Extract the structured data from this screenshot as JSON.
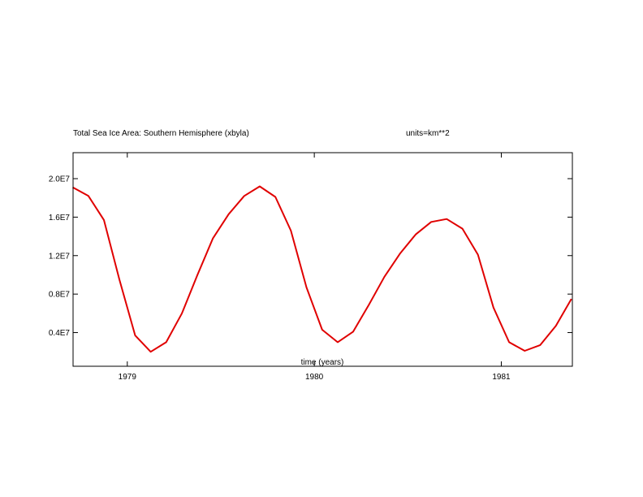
{
  "chart_data": {
    "type": "line",
    "title": "Total Sea Ice Area: Southern Hemisphere (xbyla)",
    "units_label": "units=km**2",
    "xlabel": "time (years)",
    "ylabel": "",
    "xlim": [
      1978.71,
      1981.38
    ],
    "ylim": [
      0.05,
      2.27
    ],
    "y_scale_note": "values in units of 1E7 km**2",
    "x_ticks": [
      {
        "value": 1979,
        "label": "1979"
      },
      {
        "value": 1980,
        "label": "1980"
      },
      {
        "value": 1981,
        "label": "1981"
      }
    ],
    "y_ticks": [
      {
        "value": 0.4,
        "label": "0.4E7"
      },
      {
        "value": 0.8,
        "label": "0.8E7"
      },
      {
        "value": 1.2,
        "label": "1.2E7"
      },
      {
        "value": 1.6,
        "label": "1.6E7"
      },
      {
        "value": 2.0,
        "label": "2.0E7"
      }
    ],
    "grid": false,
    "legend": "none",
    "series": [
      {
        "color": "#e00000",
        "x": [
          1978.708,
          1978.792,
          1978.875,
          1978.958,
          1979.042,
          1979.125,
          1979.208,
          1979.292,
          1979.375,
          1979.458,
          1979.542,
          1979.625,
          1979.708,
          1979.792,
          1979.875,
          1979.958,
          1980.042,
          1980.125,
          1980.208,
          1980.292,
          1980.375,
          1980.458,
          1980.542,
          1980.625,
          1980.708,
          1980.792,
          1980.875,
          1980.958,
          1981.042,
          1981.125,
          1981.208,
          1981.292,
          1981.375
        ],
        "values": [
          1.91,
          1.82,
          1.57,
          0.95,
          0.37,
          0.2,
          0.3,
          0.6,
          1.0,
          1.38,
          1.63,
          1.82,
          1.92,
          1.81,
          1.46,
          0.87,
          0.43,
          0.3,
          0.41,
          0.69,
          0.98,
          1.22,
          1.42,
          1.55,
          1.58,
          1.48,
          1.21,
          0.66,
          0.3,
          0.21,
          0.27,
          0.47,
          0.75
        ]
      }
    ]
  }
}
